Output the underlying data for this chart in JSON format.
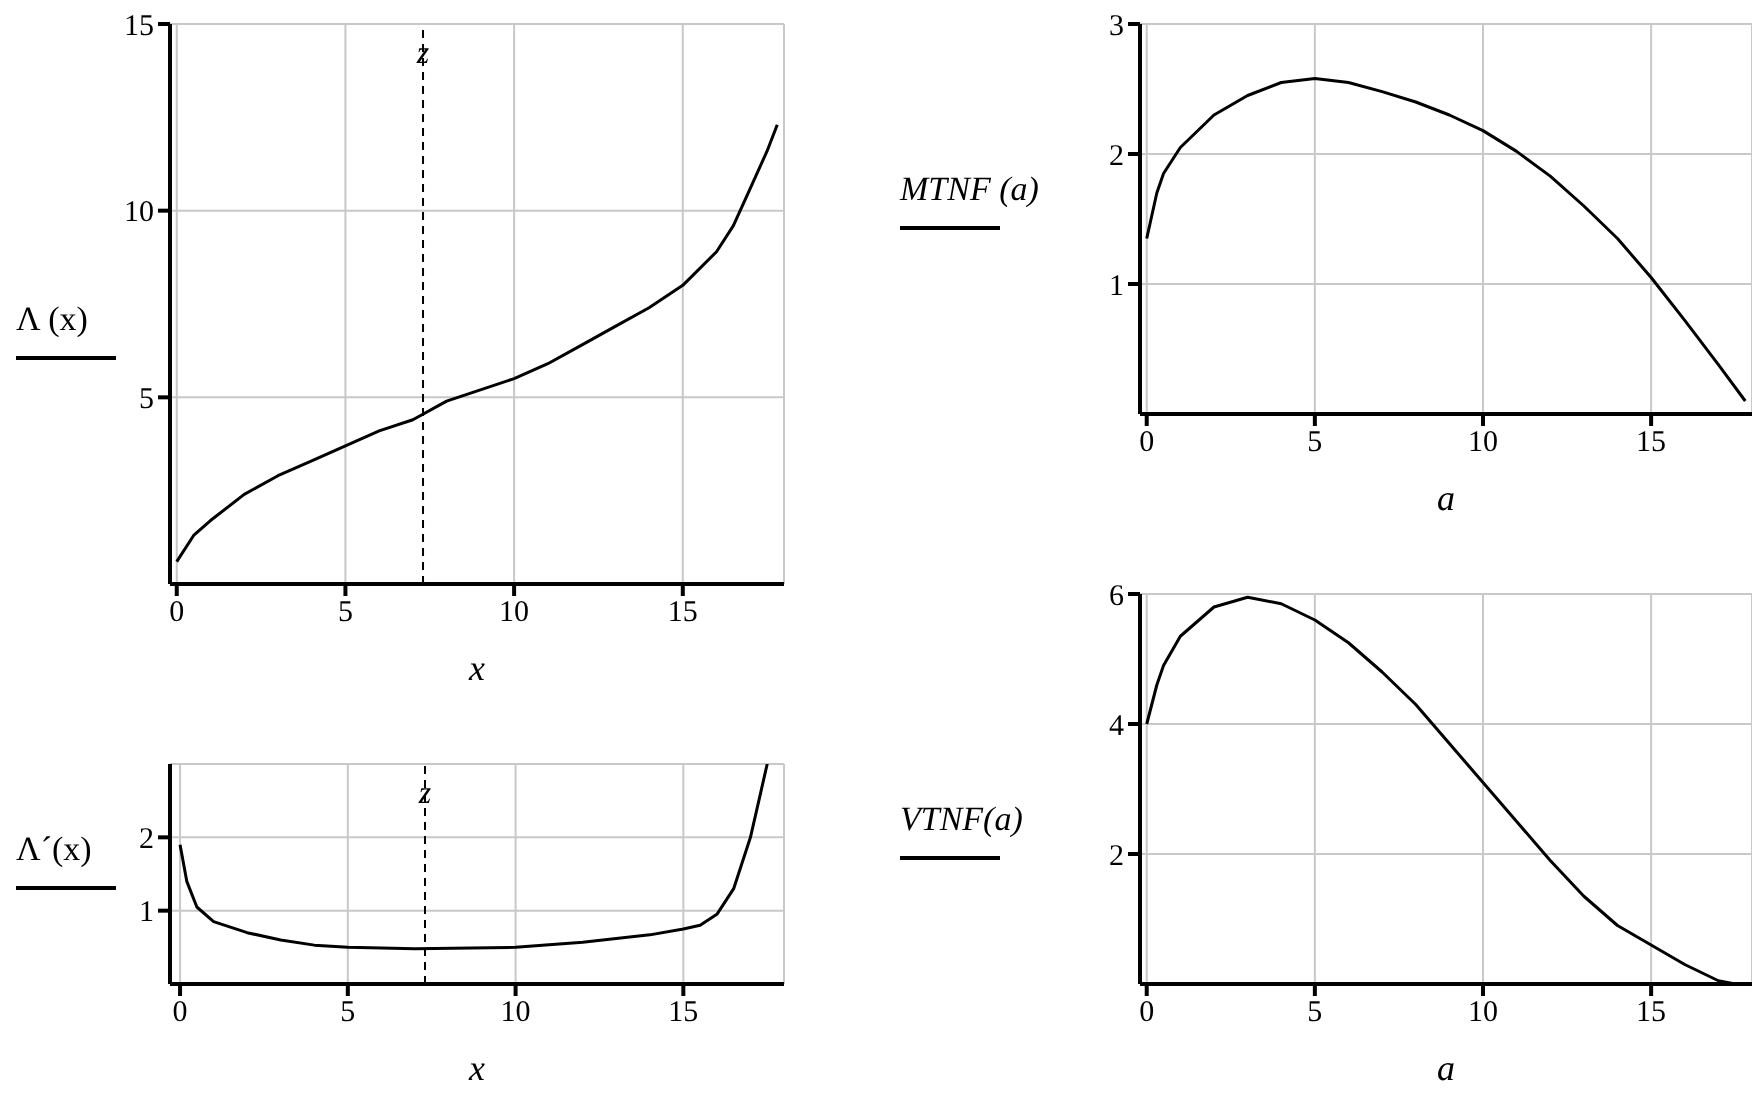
{
  "chart_data": [
    {
      "type": "line",
      "ylabel": "Λ (x)",
      "xlabel": "x",
      "xlim": [
        -0.2,
        18
      ],
      "ylim": [
        0,
        15
      ],
      "xticks": [
        0,
        5,
        10,
        15
      ],
      "yticks": [
        5,
        10,
        15
      ],
      "grid": true,
      "color": "#000000",
      "x": [
        0,
        0.5,
        1,
        2,
        3,
        4,
        5,
        6,
        7,
        8,
        9,
        10,
        11,
        12,
        13,
        14,
        15,
        16,
        16.5,
        17,
        17.5,
        17.8
      ],
      "values": [
        0.6,
        1.3,
        1.7,
        2.4,
        2.9,
        3.3,
        3.7,
        4.1,
        4.4,
        4.9,
        5.2,
        5.5,
        5.9,
        6.4,
        6.9,
        7.4,
        8.0,
        8.9,
        9.6,
        10.6,
        11.6,
        12.3
      ],
      "ref_lines": [
        {
          "axis": "x",
          "value": 7.3,
          "label": "z",
          "line_style": "dashed"
        }
      ]
    },
    {
      "type": "line",
      "ylabel": "Λ´(x)",
      "xlabel": "x",
      "xlim": [
        -0.3,
        18
      ],
      "ylim": [
        0,
        3
      ],
      "xticks": [
        0,
        5,
        10,
        15
      ],
      "yticks": [
        1,
        2
      ],
      "grid": true,
      "color": "#000000",
      "x": [
        0,
        0.2,
        0.5,
        1,
        2,
        3,
        4,
        5,
        7,
        10,
        12,
        14,
        15,
        15.5,
        16,
        16.5,
        17,
        17.3,
        17.5
      ],
      "values": [
        1.9,
        1.4,
        1.05,
        0.85,
        0.7,
        0.6,
        0.53,
        0.5,
        0.48,
        0.5,
        0.57,
        0.67,
        0.75,
        0.8,
        0.95,
        1.3,
        2.0,
        2.6,
        3.0
      ],
      "ref_lines": [
        {
          "axis": "x",
          "value": 7.3,
          "label": "z",
          "line_style": "dashed"
        }
      ]
    },
    {
      "type": "line",
      "ylabel": "MTNF (a)",
      "xlabel": "a",
      "xlim": [
        -0.2,
        18
      ],
      "ylim": [
        0,
        3
      ],
      "xticks": [
        0,
        5,
        10,
        15
      ],
      "yticks": [
        1,
        2,
        3
      ],
      "grid": true,
      "color": "#000000",
      "x": [
        0,
        0.3,
        0.5,
        1,
        2,
        3,
        4,
        5,
        6,
        7,
        8,
        9,
        10,
        11,
        12,
        13,
        14,
        15,
        16,
        17,
        17.8
      ],
      "values": [
        1.35,
        1.7,
        1.85,
        2.05,
        2.3,
        2.45,
        2.55,
        2.58,
        2.55,
        2.48,
        2.4,
        2.3,
        2.18,
        2.02,
        1.83,
        1.6,
        1.35,
        1.05,
        0.72,
        0.38,
        0.1
      ]
    },
    {
      "type": "line",
      "ylabel": "VTNF(a)",
      "xlabel": "a",
      "xlim": [
        -0.2,
        18
      ],
      "ylim": [
        0,
        6
      ],
      "xticks": [
        0,
        5,
        10,
        15
      ],
      "yticks": [
        2,
        4,
        6
      ],
      "grid": true,
      "color": "#000000",
      "x": [
        0,
        0.3,
        0.5,
        1,
        2,
        3,
        4,
        5,
        6,
        7,
        8,
        9,
        10,
        11,
        12,
        13,
        14,
        15,
        16,
        17,
        17.5
      ],
      "values": [
        4.0,
        4.6,
        4.9,
        5.35,
        5.8,
        5.95,
        5.85,
        5.6,
        5.25,
        4.8,
        4.3,
        3.7,
        3.1,
        2.5,
        1.9,
        1.35,
        0.9,
        0.6,
        0.3,
        0.05,
        0
      ]
    }
  ]
}
